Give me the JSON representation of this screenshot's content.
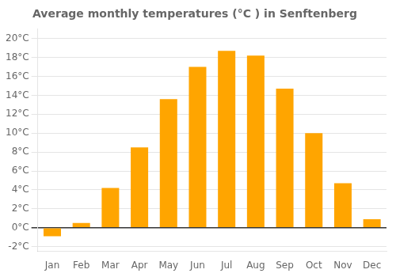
{
  "chart_data": {
    "type": "bar",
    "title": "Average monthly temperatures (°C ) in Senftenberg",
    "categories": [
      "Jan",
      "Feb",
      "Mar",
      "Apr",
      "May",
      "Jun",
      "Jul",
      "Aug",
      "Sep",
      "Oct",
      "Nov",
      "Dec"
    ],
    "values": [
      -0.9,
      0.5,
      4.2,
      8.5,
      13.6,
      17.0,
      18.7,
      18.2,
      14.7,
      10.0,
      4.7,
      0.9
    ],
    "color": "#FFA500",
    "ylim": [
      -2.5,
      21
    ],
    "yticks": [
      {
        "value": -2,
        "label": "-2°C"
      },
      {
        "value": 0,
        "label": "0°C"
      },
      {
        "value": 2,
        "label": "2°C"
      },
      {
        "value": 4,
        "label": "4°C"
      },
      {
        "value": 6,
        "label": "6°C"
      },
      {
        "value": 8,
        "label": "8°C"
      },
      {
        "value": 10,
        "label": "10°C"
      },
      {
        "value": 12,
        "label": "12°C"
      },
      {
        "value": 14,
        "label": "14°C"
      },
      {
        "value": 16,
        "label": "16°C"
      },
      {
        "value": 18,
        "label": "18°C"
      },
      {
        "value": 20,
        "label": "20°C"
      }
    ],
    "grid": true
  }
}
